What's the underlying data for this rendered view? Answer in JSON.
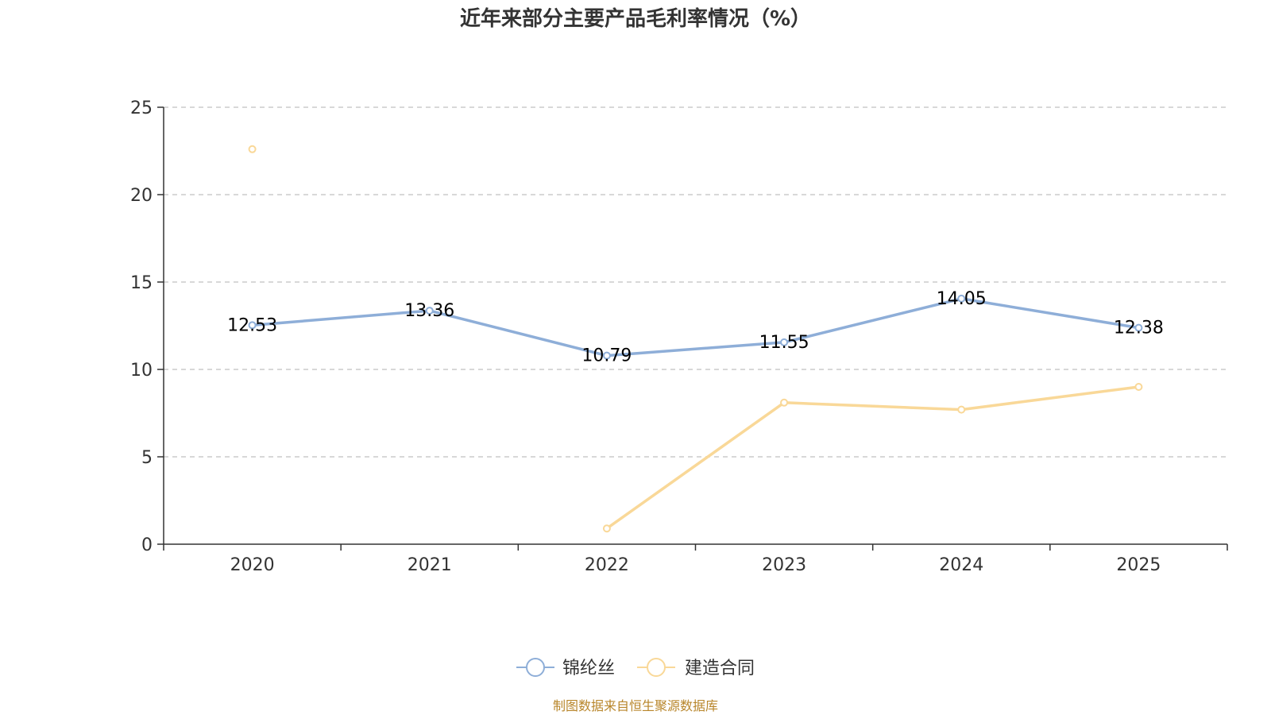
{
  "title": "近年来部分主要产品毛利率情况（%）",
  "source": "制图数据来自恒生聚源数据库",
  "chart_data": {
    "type": "line",
    "title": "近年来部分主要产品毛利率情况（%）",
    "xlabel": "",
    "ylabel": "",
    "categories": [
      "2020",
      "2021",
      "2022",
      "2023",
      "2024",
      "2025"
    ],
    "ylim": [
      0,
      25
    ],
    "yticks": [
      "0",
      "5",
      "10",
      "15",
      "20",
      "25"
    ],
    "grid": true,
    "legend_position": "bottom",
    "series": [
      {
        "name": "锦纶丝",
        "color": "#8eaed8",
        "values": [
          12.53,
          13.36,
          10.79,
          11.55,
          14.05,
          12.38
        ],
        "labels": [
          "12.53",
          "13.36",
          "10.79",
          "11.55",
          "14.05",
          "12.38"
        ],
        "show_labels": true
      },
      {
        "name": "建造合同",
        "color": "#f9d898",
        "values": [
          22.6,
          null,
          0.9,
          8.1,
          7.7,
          9.0
        ],
        "labels": [
          "",
          "",
          "",
          "",
          "",
          ""
        ],
        "show_labels": false
      }
    ]
  }
}
